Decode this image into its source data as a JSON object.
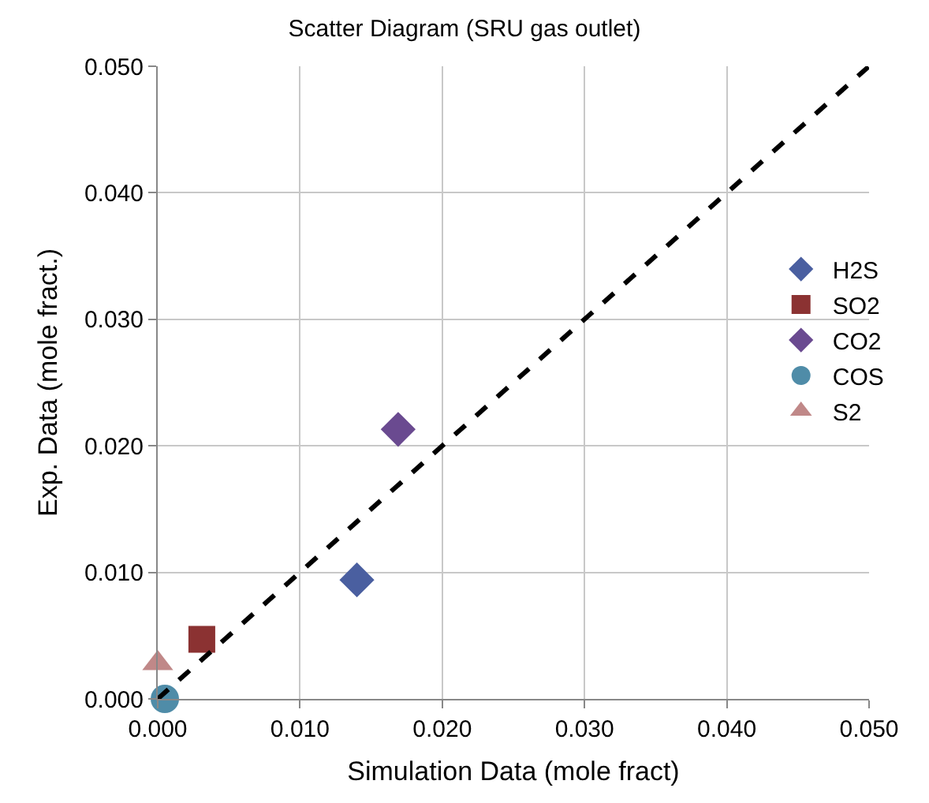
{
  "chart_data": {
    "type": "scatter",
    "title": "Scatter Diagram (SRU gas outlet)",
    "xlabel": "Simulation Data (mole fract)",
    "ylabel": "Exp. Data (mole fract.)",
    "xlim": [
      0,
      0.05
    ],
    "ylim": [
      0,
      0.05
    ],
    "xticks": [
      {
        "value": 0,
        "label": "0.000"
      },
      {
        "value": 0.01,
        "label": "0.010"
      },
      {
        "value": 0.02,
        "label": "0.020"
      },
      {
        "value": 0.03,
        "label": "0.030"
      },
      {
        "value": 0.04,
        "label": "0.040"
      },
      {
        "value": 0.05,
        "label": "0.050"
      }
    ],
    "yticks": [
      {
        "value": 0,
        "label": "0.000"
      },
      {
        "value": 0.01,
        "label": "0.010"
      },
      {
        "value": 0.02,
        "label": "0.020"
      },
      {
        "value": 0.03,
        "label": "0.030"
      },
      {
        "value": 0.04,
        "label": "0.040"
      },
      {
        "value": 0.05,
        "label": "0.050"
      }
    ],
    "grid": true,
    "legend": "right",
    "series": [
      {
        "name": "H2S",
        "color": "#4a5fa0",
        "marker": "diamond",
        "x": [
          0.014
        ],
        "values": [
          0.0094
        ]
      },
      {
        "name": "SO2",
        "color": "#8b3232",
        "marker": "square",
        "x": [
          0.0031
        ],
        "values": [
          0.0047
        ]
      },
      {
        "name": "CO2",
        "color": "#6a4a90",
        "marker": "diamond",
        "x": [
          0.0169
        ],
        "values": [
          0.0213
        ]
      },
      {
        "name": "COS",
        "color": "#4f8ca8",
        "marker": "circle",
        "x": [
          0.0005
        ],
        "values": [
          0
        ]
      },
      {
        "name": "S2",
        "color": "#c08888",
        "marker": "triangle",
        "x": [
          0
        ],
        "values": [
          0.0028
        ]
      },
      {
        "type": "line",
        "color": "#000000",
        "line_style": "dashed",
        "marker": "none",
        "x": [
          0,
          0.05
        ],
        "values": [
          0,
          0.05
        ]
      }
    ]
  }
}
